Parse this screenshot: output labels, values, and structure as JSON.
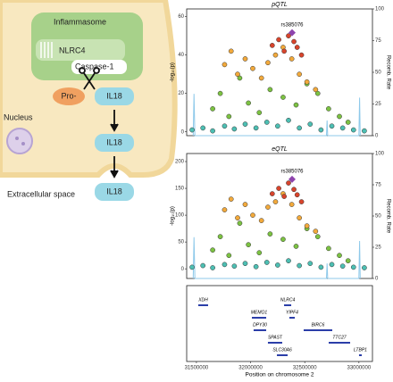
{
  "diagram": {
    "inflammasome": "Inflammasome",
    "nlrc4": "NLRC4",
    "caspase": "Caspase-1",
    "pro": "Pro-",
    "il18_a": "IL18",
    "il18_b": "IL18",
    "il18_c": "IL18",
    "nucleus": "Nucleus",
    "extracellular": "Extracellular space"
  },
  "chart_data": [
    {
      "type": "scatter",
      "title": "pQTL",
      "ylabel": "-log₁₀(p)",
      "y2label": "Recomb. Rate",
      "xlim": [
        31410000,
        33125000
      ],
      "ylim": [
        -2,
        64
      ],
      "yticks": [
        0,
        20,
        40,
        60
      ],
      "y2lim": [
        0,
        100
      ],
      "y2ticks": [
        0,
        25,
        50,
        75,
        100
      ],
      "series": [
        {
          "color": "#4dbfb3",
          "x": [
            31460000,
            31560000,
            31650000,
            31760000,
            31850000,
            31950000,
            32050000,
            32150000,
            32250000,
            32350000,
            32450000,
            32550000,
            32650000,
            32750000,
            32850000,
            32950000,
            33050000
          ],
          "values": [
            1,
            2,
            0.5,
            3,
            1.5,
            4,
            2,
            5,
            3,
            6,
            2,
            4,
            1,
            3,
            2,
            1,
            0.5
          ]
        },
        {
          "color": "#7cc242",
          "x": [
            31650000,
            31720000,
            31800000,
            31900000,
            31980000,
            32080000,
            32180000,
            32300000,
            32420000,
            32520000,
            32620000,
            32720000,
            32820000,
            32900000
          ],
          "values": [
            12,
            20,
            8,
            28,
            15,
            10,
            22,
            18,
            14,
            25,
            20,
            12,
            8,
            5
          ]
        },
        {
          "color": "#f2a93b",
          "x": [
            31760000,
            31820000,
            31880000,
            31950000,
            32020000,
            32100000,
            32160000,
            32230000,
            32300000,
            32380000,
            32450000,
            32520000,
            32600000
          ],
          "values": [
            35,
            42,
            30,
            38,
            33,
            28,
            36,
            40,
            44,
            38,
            30,
            26,
            22
          ]
        },
        {
          "color": "#d8442c",
          "x": [
            32200000,
            32260000,
            32310000,
            32350000,
            32400000,
            32430000,
            32470000
          ],
          "values": [
            45,
            48,
            42,
            50,
            47,
            44,
            40
          ]
        }
      ],
      "recomb": {
        "color": "#8ec9ea",
        "axis": "y2",
        "x": [
          31470000,
          31478000,
          31486000,
          32700000,
          32706000,
          32712000,
          33000000,
          33006000,
          33012000
        ],
        "values": [
          0,
          33,
          0,
          0,
          12,
          0,
          0,
          30,
          0
        ]
      },
      "lead": {
        "label": "rs385076",
        "x": 32383000,
        "value": 51.6,
        "color": "#8e44ad"
      }
    },
    {
      "type": "scatter",
      "title": "eQTL",
      "ylabel": "-log₁₀(p)",
      "y2label": "Recomb. Rate",
      "xlim": [
        31410000,
        33125000
      ],
      "ylim": [
        -18,
        215
      ],
      "yticks": [
        0,
        50,
        100,
        150,
        200
      ],
      "y2lim": [
        0,
        100
      ],
      "y2ticks": [
        0,
        25,
        50,
        75,
        100
      ],
      "series": [
        {
          "color": "#4dbfb3",
          "x": [
            31460000,
            31560000,
            31650000,
            31760000,
            31850000,
            31950000,
            32050000,
            32150000,
            32250000,
            32350000,
            32450000,
            32550000,
            32650000,
            32750000,
            32850000,
            32950000,
            33050000
          ],
          "values": [
            3,
            6,
            2,
            8,
            5,
            10,
            4,
            12,
            7,
            15,
            6,
            10,
            3,
            8,
            5,
            3,
            2
          ]
        },
        {
          "color": "#7cc242",
          "x": [
            31650000,
            31720000,
            31800000,
            31900000,
            31980000,
            32080000,
            32180000,
            32300000,
            32420000,
            32520000,
            32620000,
            32720000,
            32820000,
            32900000
          ],
          "values": [
            35,
            60,
            25,
            85,
            45,
            30,
            65,
            55,
            42,
            75,
            60,
            38,
            25,
            15
          ]
        },
        {
          "color": "#f2a93b",
          "x": [
            31760000,
            31820000,
            31880000,
            31950000,
            32020000,
            32100000,
            32160000,
            32230000,
            32300000,
            32380000,
            32450000,
            32520000,
            32600000
          ],
          "values": [
            110,
            130,
            95,
            120,
            100,
            90,
            115,
            125,
            140,
            120,
            95,
            80,
            70
          ]
        },
        {
          "color": "#d8442c",
          "x": [
            32200000,
            32260000,
            32310000,
            32350000,
            32400000,
            32430000,
            32470000
          ],
          "values": [
            140,
            150,
            135,
            160,
            148,
            138,
            125
          ]
        }
      ],
      "recomb": {
        "color": "#8ec9ea",
        "axis": "y2",
        "x": [
          31470000,
          31478000,
          31486000,
          32700000,
          32706000,
          32712000,
          33000000,
          33006000,
          33012000
        ],
        "values": [
          0,
          33,
          0,
          0,
          12,
          0,
          0,
          30,
          0
        ]
      },
      "lead": {
        "label": "rs385076",
        "x": 32383000,
        "value": 167,
        "color": "#8e44ad"
      }
    },
    {
      "type": "genes",
      "xlabel": "Position on chromosome 2",
      "xlim": [
        31410000,
        33125000
      ],
      "xticks": [
        31500000,
        32000000,
        32500000,
        33000000
      ],
      "color": "#2b3ea8",
      "genes": [
        {
          "name": "XDH",
          "start": 31517000,
          "end": 31608000
        },
        {
          "name": "MEMO1",
          "start": 32012000,
          "end": 32144000
        },
        {
          "name": "NLRC4",
          "start": 32309000,
          "end": 32375000
        },
        {
          "name": "YIPF4",
          "start": 32358000,
          "end": 32408000
        },
        {
          "name": "DPY30",
          "start": 32028000,
          "end": 32144000
        },
        {
          "name": "BIRC6",
          "start": 32490000,
          "end": 32754000
        },
        {
          "name": "SPAST",
          "start": 32160000,
          "end": 32292000
        },
        {
          "name": "TTC27",
          "start": 32721000,
          "end": 32919000
        },
        {
          "name": "SLC30A6",
          "start": 32243000,
          "end": 32342000
        },
        {
          "name": "LTBP1",
          "start": 33001000,
          "end": 33026000
        }
      ]
    }
  ]
}
